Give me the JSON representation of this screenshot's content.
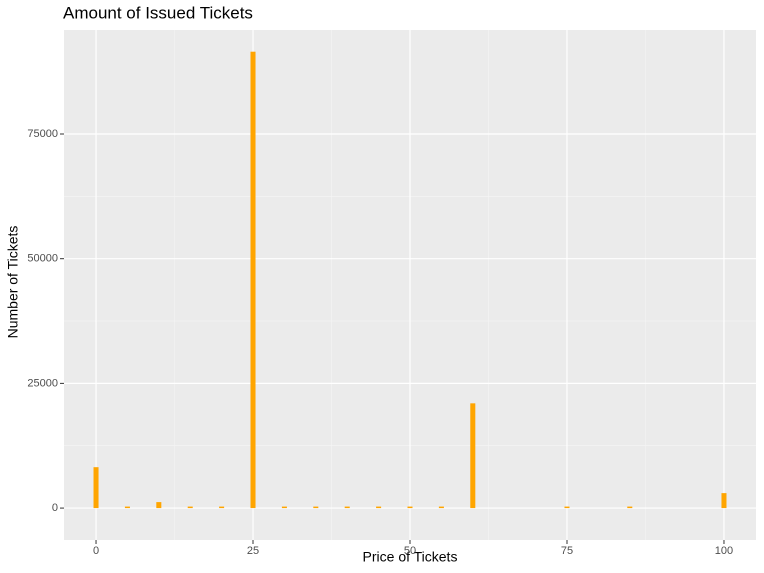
{
  "chart_data": {
    "type": "bar",
    "title": "Amount of Issued Tickets",
    "x_label": "Price of Tickets",
    "y_label": "Number of Tickets",
    "x": [
      0,
      5,
      10,
      15,
      20,
      25,
      30,
      35,
      40,
      45,
      50,
      55,
      60,
      75,
      85,
      100
    ],
    "values": [
      8200,
      300,
      1200,
      300,
      300,
      91500,
      300,
      300,
      300,
      300,
      300,
      300,
      21000,
      300,
      300,
      3000
    ],
    "color": "#FFA500",
    "xlim": [
      -5.1,
      105.1
    ],
    "xticks": [
      0,
      25,
      50,
      75,
      100
    ],
    "ylim": [
      -6400,
      95850
    ],
    "yticks": [
      0,
      25000,
      50000,
      75000
    ],
    "grid": true
  }
}
